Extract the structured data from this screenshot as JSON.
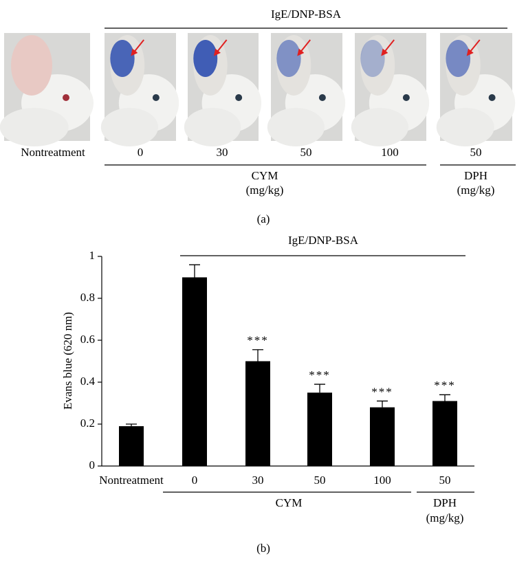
{
  "panel_a": {
    "treatment": "IgE/DNP-BSA",
    "doses": [
      "Nontreatment",
      "0",
      "30",
      "50",
      "100",
      "50"
    ],
    "groups": [
      {
        "name": "CYM",
        "unit": "(mg/kg)"
      },
      {
        "name": "DPH",
        "unit": "(mg/kg)"
      }
    ],
    "panel_label": "(a)"
  },
  "chart_data": {
    "type": "bar",
    "annotation": "IgE/DNP-BSA",
    "ylabel": "Evans blue (620 nm)",
    "categories": [
      "Nontreatment",
      "0",
      "30",
      "50",
      "100",
      "50"
    ],
    "values": [
      0.19,
      0.9,
      0.5,
      0.35,
      0.28,
      0.31
    ],
    "errors": [
      0.01,
      0.06,
      0.055,
      0.04,
      0.03,
      0.03
    ],
    "significance": [
      null,
      null,
      "***",
      "***",
      "***",
      "***"
    ],
    "groups": [
      {
        "name": "CYM"
      },
      {
        "name": "DPH",
        "unit": "(mg/kg)"
      }
    ],
    "color": "#000000",
    "ylim": [
      0,
      1
    ],
    "yticks": [
      0,
      0.2,
      0.4,
      0.6,
      0.8,
      1
    ],
    "panel_label": "(b)"
  }
}
